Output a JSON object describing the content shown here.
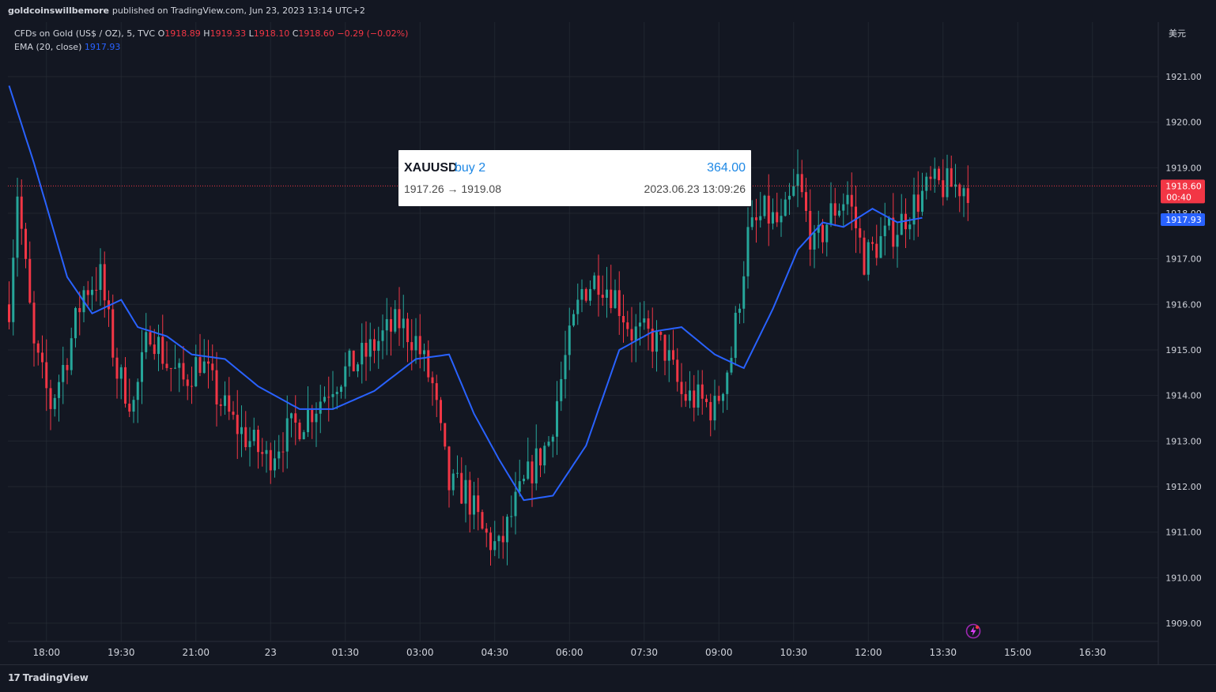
{
  "header": {
    "publisher": "goldcoinswillbemore",
    "publish_text": "published on TradingView.com, Jun 23, 2023 13:14 UTC+2"
  },
  "legend": {
    "symbol_line": "CFDs on Gold (US$ / OZ), 5, TVC",
    "open_label": "O",
    "open": "1918.89",
    "high_label": "H",
    "high": "1919.33",
    "low_label": "L",
    "low": "1918.10",
    "close_label": "C",
    "close": "1918.60",
    "change": "−0.29 (−0.02%)",
    "ema_label": "EMA (20, close)",
    "ema_value": "1917.93"
  },
  "currency_label": "美元",
  "trade": {
    "symbol": "XAUUSD",
    "action": "buy 2",
    "profit": "364.00",
    "prices": "1917.26 → 1919.08",
    "time": "2023.06.23 13:09:26"
  },
  "price_tags": {
    "last_price": "1918.60",
    "countdown": "00:40",
    "ema_price": "1917.93"
  },
  "footer": {
    "brand": "TradingView"
  },
  "colors": {
    "background": "#131722",
    "up": "#26a69a",
    "down": "#f23645",
    "ema": "#2962ff",
    "grid": "#2a2e39"
  },
  "icons": {
    "logo": "tradingview-logo-icon",
    "alert": "lightning-icon"
  },
  "chart_data": {
    "type": "candlestick",
    "instrument": "CFDs on Gold (US$ / OZ)",
    "timeframe": "5",
    "ylim": [
      1908.8,
      1921.6
    ],
    "y_ticks": [
      "1909.00",
      "1910.00",
      "1911.00",
      "1912.00",
      "1913.00",
      "1914.00",
      "1915.00",
      "1916.00",
      "1917.00",
      "1918.00",
      "1919.00",
      "1920.00",
      "1921.00"
    ],
    "x_ticks": [
      "18:00",
      "19:30",
      "21:00",
      "23",
      "01:30",
      "03:00",
      "04:30",
      "06:00",
      "07:30",
      "09:00",
      "10:30",
      "12:00",
      "13:30",
      "15:00",
      "16:30"
    ],
    "x_tick_index": [
      9,
      27,
      45,
      63,
      81,
      99,
      117,
      135,
      153,
      171,
      189,
      207,
      225,
      243,
      261
    ],
    "ema_series": {
      "name": "EMA (20, close)",
      "anchor_index": [
        0,
        6,
        14,
        20,
        27,
        31,
        38,
        44,
        52,
        60,
        70,
        78,
        88,
        98,
        106,
        112,
        118,
        124,
        131,
        139,
        147,
        155,
        162,
        170,
        177,
        184,
        190,
        196,
        201,
        208,
        214,
        220
      ],
      "anchor_value": [
        1920.8,
        1919.1,
        1916.6,
        1915.8,
        1916.1,
        1915.5,
        1915.3,
        1914.9,
        1914.8,
        1914.2,
        1913.7,
        1913.7,
        1914.1,
        1914.8,
        1914.9,
        1913.6,
        1912.6,
        1911.7,
        1911.8,
        1912.9,
        1915.0,
        1915.4,
        1915.5,
        1914.9,
        1914.6,
        1915.9,
        1917.2,
        1917.8,
        1917.7,
        1918.1,
        1917.8,
        1917.9
      ]
    },
    "candles_anchor_index": [
      0,
      2,
      6,
      10,
      14,
      18,
      22,
      26,
      30,
      34,
      38,
      42,
      46,
      50,
      54,
      58,
      62,
      66,
      70,
      74,
      78,
      82,
      86,
      90,
      94,
      98,
      102,
      106,
      110,
      114,
      118,
      122,
      126,
      130,
      134,
      138,
      142,
      146,
      150,
      154,
      158,
      162,
      166,
      170,
      174,
      178,
      182,
      186,
      190,
      194,
      198,
      202,
      206,
      210,
      214,
      218,
      222
    ],
    "candles_anchor_close": [
      1916.0,
      1918.5,
      1915.0,
      1913.8,
      1914.9,
      1916.3,
      1916.6,
      1914.5,
      1913.8,
      1915.5,
      1914.7,
      1914.3,
      1914.8,
      1914.0,
      1913.4,
      1913.0,
      1912.6,
      1913.1,
      1913.4,
      1913.8,
      1914.3,
      1914.6,
      1914.9,
      1915.3,
      1915.6,
      1915.2,
      1914.2,
      1912.0,
      1911.9,
      1911.0,
      1910.6,
      1911.6,
      1912.4,
      1913.0,
      1914.8,
      1916.3,
      1916.6,
      1916.2,
      1915.4,
      1915.3,
      1915.0,
      1914.0,
      1913.9,
      1913.7,
      1914.9,
      1917.5,
      1918.0,
      1917.7,
      1918.7,
      1917.2,
      1918.0,
      1918.4,
      1917.0,
      1917.4,
      1917.7,
      1918.2,
      1918.6
    ]
  }
}
